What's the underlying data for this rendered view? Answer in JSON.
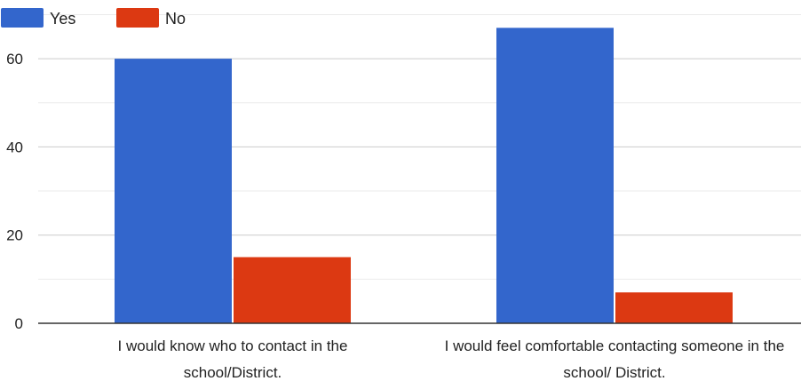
{
  "chart_data": {
    "type": "bar",
    "categories": [
      "I would know who to contact in the school/District.",
      "I would feel comfortable contacting someone in the school/ District."
    ],
    "series": [
      {
        "name": "Yes",
        "color": "#3366cc",
        "values": [
          60,
          67
        ]
      },
      {
        "name": "No",
        "color": "#dc3912",
        "values": [
          15,
          7
        ]
      }
    ],
    "yticks": [
      0,
      20,
      40,
      60
    ],
    "ylim": [
      0,
      70
    ],
    "grid": true,
    "legend": "top-left",
    "title": "",
    "xlabel": "",
    "ylabel": ""
  }
}
